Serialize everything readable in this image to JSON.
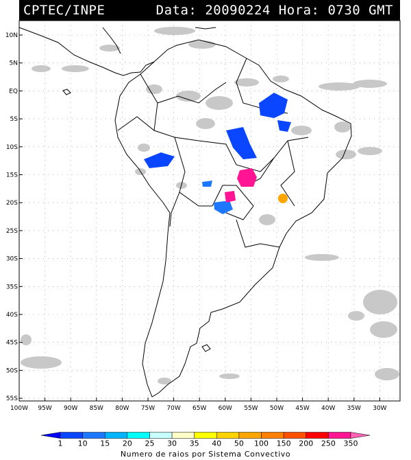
{
  "header": {
    "source": "CPTEC/INPE",
    "date_label": "Data:",
    "date": "20090224",
    "time_label": "Hora:",
    "time": "0730",
    "tz": "GMT"
  },
  "map": {
    "lat_ticks": [
      "10N",
      "5N",
      "EQ",
      "5S",
      "10S",
      "15S",
      "20S",
      "25S",
      "30S",
      "35S",
      "40S",
      "45S",
      "50S",
      "55S"
    ],
    "lon_ticks": [
      "100W",
      "95W",
      "90W",
      "85W",
      "80W",
      "75W",
      "70W",
      "65W",
      "60W",
      "55W",
      "50W",
      "45W",
      "40W",
      "35W",
      "30W"
    ],
    "colors": {
      "cloud": "#c8c8c8",
      "land_outline": "#000000",
      "grid": "#808080"
    }
  },
  "colorbar": {
    "labels": [
      "1",
      "10",
      "15",
      "20",
      "25",
      "30",
      "35",
      "40",
      "50",
      "100",
      "150",
      "200",
      "250",
      "350"
    ],
    "colors": [
      "#0000ff",
      "#0a46ff",
      "#1e78ff",
      "#00b4ff",
      "#00ffff",
      "#c8ffff",
      "#ffffc8",
      "#ffff00",
      "#ffd200",
      "#ffa500",
      "#ff8000",
      "#ff5000",
      "#ff0000",
      "#ff1493",
      "#ff64b4"
    ],
    "title": "Numero de raios por Sistema Convectivo"
  }
}
